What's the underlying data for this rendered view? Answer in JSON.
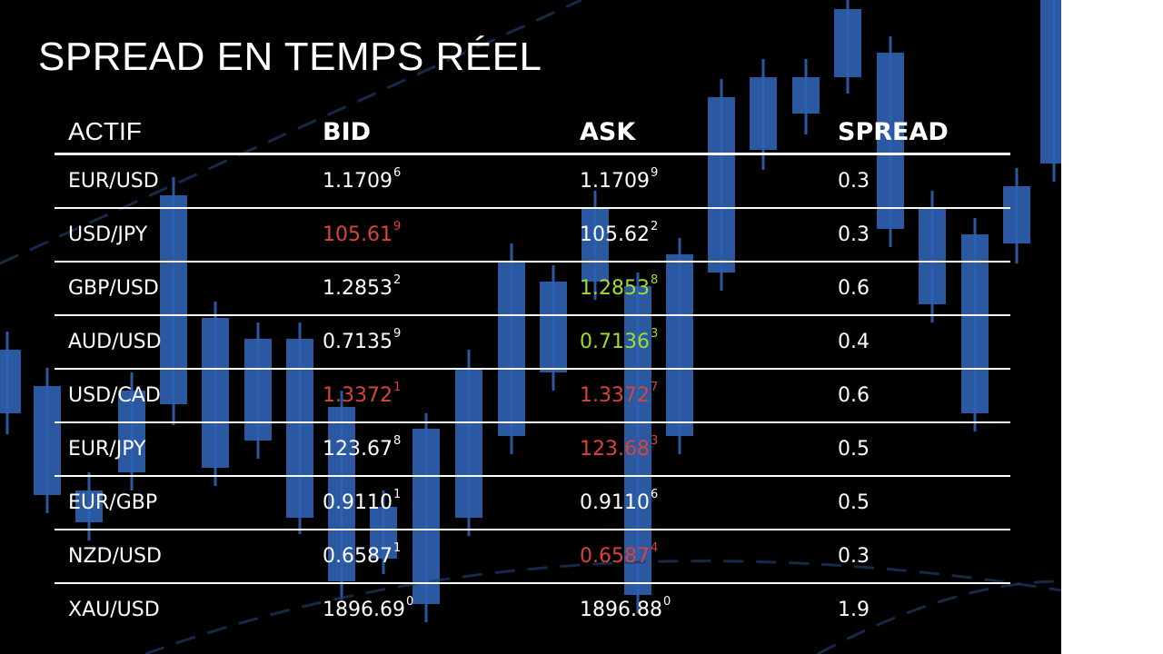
{
  "title": "SPREAD EN TEMPS RÉEL",
  "headers": [
    "ACTIF",
    "BID",
    "ASK",
    "SPREAD"
  ],
  "colors": {
    "background": "#000000",
    "candle": "#2f62b3",
    "down": "#d9443a",
    "up": "#9fdc2e",
    "text": "#ffffff"
  },
  "rows": [
    {
      "symbol": "EUR/USD",
      "bid": {
        "main": "1.1709",
        "pip": "6",
        "color": "white"
      },
      "ask": {
        "main": "1.1709",
        "pip": "9",
        "color": "white"
      },
      "spread": "0.3"
    },
    {
      "symbol": "USD/JPY",
      "bid": {
        "main": "105.61",
        "pip": "9",
        "color": "red"
      },
      "ask": {
        "main": "105.62",
        "pip": "2",
        "color": "white"
      },
      "spread": "0.3"
    },
    {
      "symbol": "GBP/USD",
      "bid": {
        "main": "1.2853",
        "pip": "2",
        "color": "white"
      },
      "ask": {
        "main": "1.2853",
        "pip": "8",
        "color": "green"
      },
      "spread": "0.6"
    },
    {
      "symbol": "AUD/USD",
      "bid": {
        "main": "0.7135",
        "pip": "9",
        "color": "white"
      },
      "ask": {
        "main": "0.7136",
        "pip": "3",
        "color": "green"
      },
      "spread": "0.4"
    },
    {
      "symbol": "USD/CAD",
      "bid": {
        "main": "1.3372",
        "pip": "1",
        "color": "red"
      },
      "ask": {
        "main": "1.3372",
        "pip": "7",
        "color": "red"
      },
      "spread": "0.6"
    },
    {
      "symbol": "EUR/JPY",
      "bid": {
        "main": "123.67",
        "pip": "8",
        "color": "white"
      },
      "ask": {
        "main": "123.68",
        "pip": "3",
        "color": "red"
      },
      "spread": "0.5"
    },
    {
      "symbol": "EUR/GBP",
      "bid": {
        "main": "0.9110",
        "pip": "1",
        "color": "white"
      },
      "ask": {
        "main": "0.9110",
        "pip": "6",
        "color": "white"
      },
      "spread": "0.5"
    },
    {
      "symbol": "NZD/USD",
      "bid": {
        "main": "0.6587",
        "pip": "1",
        "color": "white"
      },
      "ask": {
        "main": "0.6587",
        "pip": "4",
        "color": "red"
      },
      "spread": "0.3"
    },
    {
      "symbol": "XAU/USD",
      "bid": {
        "main": "1896.69",
        "pip": "0",
        "color": "white"
      },
      "ask": {
        "main": "1896.88",
        "pip": "0",
        "color": "white"
      },
      "spread": "1.9"
    }
  ]
}
